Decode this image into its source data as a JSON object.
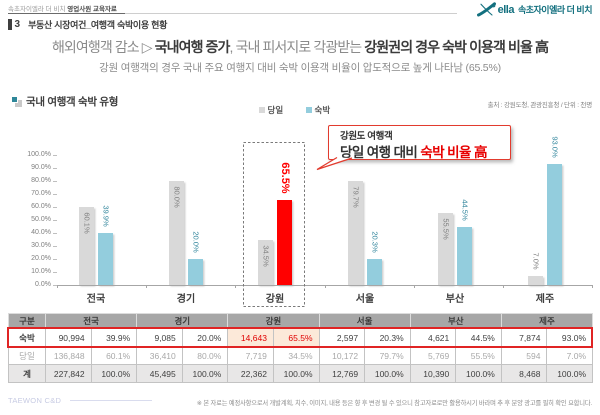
{
  "meta": {
    "doc_label": "속초자이엘라 더 비치 ",
    "doc_label_bold": "영업사원 교육자료",
    "logo_brand": "ella",
    "logo_ko": "속초자이엘라 더 비치",
    "section_no": "3",
    "section_title": "부동산 시장여건_여행객 숙박이용 현황"
  },
  "headline": {
    "part1": "해외여행객 감소 ▷ ",
    "part2": "국내여행 증가",
    "part3": ", 국내 피서지로 각광받는 ",
    "part4": "강원권의 경우 숙박 이용객 비율 高",
    "subtitle": "강원 여행객의 경우 국내 주요 여행지 대비 숙박 이용객 비율이 압도적으로 높게 나타남 (65.5%)"
  },
  "chart_header": {
    "title": "국내 여행객 숙박 유형",
    "source": "출처 : 강원도청, 관광진흥청 / 단위 : 천명"
  },
  "callout": {
    "line1": "강원도 여행객",
    "line2_plain": "당일 여행 대비 ",
    "line2_red": "숙박 비율 高"
  },
  "chart_data": {
    "type": "bar",
    "categories": [
      "전국",
      "경기",
      "강원",
      "서울",
      "부산",
      "제주"
    ],
    "series": [
      {
        "name": "당일",
        "color": "#d9d9d9",
        "label_color": "#7f7f7f",
        "values": [
          60.1,
          80.0,
          34.5,
          79.7,
          55.5,
          7.0
        ]
      },
      {
        "name": "숙박",
        "color": "#93cddd",
        "label_color": "#31859c",
        "values": [
          39.9,
          20.0,
          65.5,
          20.3,
          44.5,
          93.0
        ]
      }
    ],
    "highlight": {
      "category": "강원",
      "series": "숙박",
      "color": "#ff0000"
    },
    "ylabel": "",
    "xlabel": "",
    "ylim": [
      0,
      100
    ],
    "y_tick_step": 10,
    "y_tick_suffix": "%",
    "grid": false,
    "legend_position": "top"
  },
  "table": {
    "corner": "구분",
    "groups": [
      "전국",
      "경기",
      "강원",
      "서울",
      "부산",
      "제주"
    ],
    "highlight_group_index": 2,
    "rows": [
      {
        "label": "숙박",
        "kind": "stay",
        "cells": [
          [
            "90,994",
            "39.9%"
          ],
          [
            "9,085",
            "20.0%"
          ],
          [
            "14,643",
            "65.5%"
          ],
          [
            "2,597",
            "20.3%"
          ],
          [
            "4,621",
            "44.5%"
          ],
          [
            "7,874",
            "93.0%"
          ]
        ]
      },
      {
        "label": "당일",
        "kind": "day",
        "cells": [
          [
            "136,848",
            "60.1%"
          ],
          [
            "36,410",
            "80.0%"
          ],
          [
            "7,719",
            "34.5%"
          ],
          [
            "10,172",
            "79.7%"
          ],
          [
            "5,769",
            "55.5%"
          ],
          [
            "594",
            "7.0%"
          ]
        ]
      },
      {
        "label": "계",
        "kind": "total",
        "cells": [
          [
            "227,842",
            "100.0%"
          ],
          [
            "45,495",
            "100.0%"
          ],
          [
            "22,362",
            "100.0%"
          ],
          [
            "12,769",
            "100.0%"
          ],
          [
            "10,390",
            "100.0%"
          ],
          [
            "8,468",
            "100.0%"
          ]
        ]
      }
    ]
  },
  "footer": {
    "company": "TAEWON C&D",
    "disclaimer": "※ 본 자료는 예정사항으로서 개발계획, 치수, 이미지, 내용 등은 향 후 변경 될 수 있으니 참고자료로만 활용하시기 바라며 추 후 분양 광고를 필히 확인 요합니다."
  }
}
